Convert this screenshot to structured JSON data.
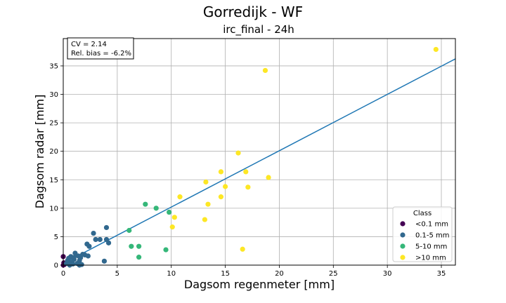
{
  "chart_data": {
    "type": "scatter",
    "title": "Gorredijk - WF",
    "subtitle": "irc_final - 24h",
    "xlabel": "Dagsom regenmeter [mm]",
    "ylabel": "Dagsom radar [mm]",
    "xlim": [
      0,
      36.3
    ],
    "ylim": [
      0,
      39.8
    ],
    "xticks": [
      0,
      5,
      10,
      15,
      20,
      25,
      30,
      35
    ],
    "yticks": [
      0,
      5,
      10,
      15,
      20,
      25,
      30,
      35
    ],
    "grid": true,
    "stats": [
      "CV = 2.14",
      "Rel. bias = -6.2%"
    ],
    "fit_line": {
      "slope": 0.99,
      "intercept": 0.3,
      "color": "#1f77b4"
    },
    "legend": {
      "title": "Class",
      "placement": "lower-right"
    },
    "series": [
      {
        "name": "<0.1 mm",
        "color": "#440154",
        "points": [
          [
            0.0,
            1.5
          ],
          [
            0.05,
            0.4
          ],
          [
            0.0,
            0.0
          ],
          [
            0.1,
            0.1
          ]
        ]
      },
      {
        "name": "0.1-5 mm",
        "color": "#31688e",
        "points": [
          [
            0.3,
            0.3
          ],
          [
            0.4,
            0.8
          ],
          [
            0.5,
            1.2
          ],
          [
            0.6,
            0.0
          ],
          [
            0.7,
            1.5
          ],
          [
            0.8,
            0.5
          ],
          [
            0.9,
            0.2
          ],
          [
            1.0,
            1.0
          ],
          [
            1.1,
            2.1
          ],
          [
            1.2,
            1.7
          ],
          [
            1.3,
            0.3
          ],
          [
            1.4,
            1.6
          ],
          [
            1.5,
            0.8
          ],
          [
            1.6,
            1.3
          ],
          [
            1.7,
            0.1
          ],
          [
            1.8,
            1.9
          ],
          [
            2.0,
            1.8
          ],
          [
            2.2,
            3.7
          ],
          [
            2.3,
            1.6
          ],
          [
            2.4,
            3.3
          ],
          [
            2.8,
            5.6
          ],
          [
            3.0,
            4.5
          ],
          [
            3.4,
            4.5
          ],
          [
            3.8,
            0.7
          ],
          [
            4.0,
            6.6
          ],
          [
            4.0,
            4.5
          ],
          [
            4.2,
            3.9
          ],
          [
            0.5,
            0.6
          ],
          [
            0.9,
            1.3
          ],
          [
            1.5,
            0.0
          ]
        ]
      },
      {
        "name": "5-10 mm",
        "color": "#35b779",
        "points": [
          [
            6.1,
            6.1
          ],
          [
            6.3,
            3.3
          ],
          [
            7.0,
            3.3
          ],
          [
            7.0,
            1.4
          ],
          [
            7.6,
            10.7
          ],
          [
            8.6,
            10.0
          ],
          [
            9.5,
            2.7
          ],
          [
            9.8,
            9.3
          ]
        ]
      },
      {
        "name": ">10 mm",
        "color": "#fde725",
        "points": [
          [
            10.1,
            6.7
          ],
          [
            10.3,
            8.4
          ],
          [
            10.8,
            12.0
          ],
          [
            13.1,
            8.0
          ],
          [
            13.2,
            14.6
          ],
          [
            13.4,
            10.7
          ],
          [
            14.6,
            16.4
          ],
          [
            14.6,
            12.0
          ],
          [
            15.0,
            13.8
          ],
          [
            16.2,
            19.7
          ],
          [
            16.6,
            2.8
          ],
          [
            16.9,
            16.4
          ],
          [
            17.1,
            13.7
          ],
          [
            18.7,
            34.2
          ],
          [
            19.0,
            15.4
          ],
          [
            34.5,
            37.9
          ]
        ]
      }
    ]
  }
}
